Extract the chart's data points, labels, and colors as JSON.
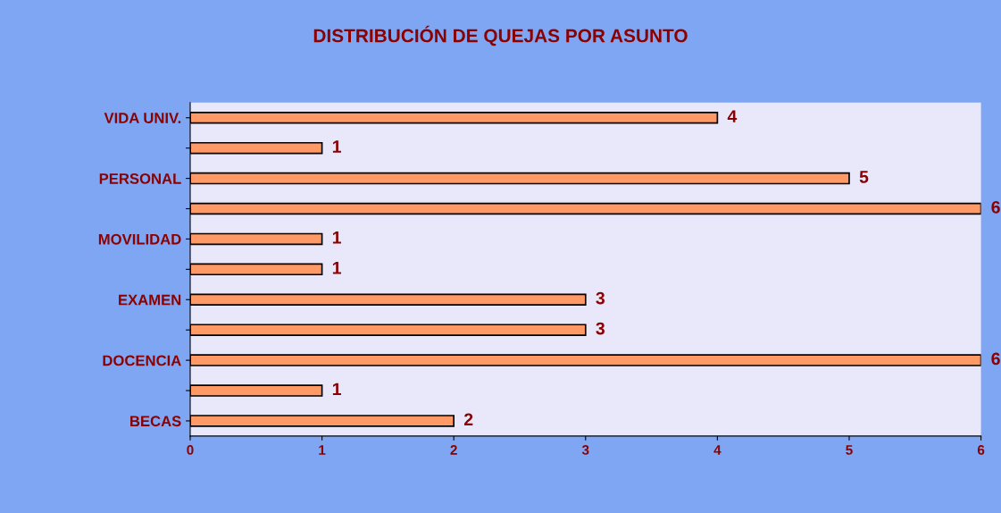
{
  "chart_data": {
    "type": "bar",
    "orientation": "horizontal",
    "title": "DISTRIBUCIÓN DE QUEJAS POR ASUNTO",
    "categories": [
      "VIDA UNIV.",
      null,
      "PERSONAL",
      null,
      "MOVILIDAD",
      null,
      "EXAMEN",
      null,
      "DOCENCIA",
      null,
      "BECAS"
    ],
    "values": [
      4,
      1,
      5,
      6,
      1,
      1,
      3,
      3,
      6,
      1,
      2
    ],
    "color": "#ff9966",
    "xlim": [
      0,
      6
    ],
    "xticks": [
      0,
      1,
      2,
      3,
      4,
      5,
      6
    ],
    "grid": false,
    "data_labels": true
  }
}
